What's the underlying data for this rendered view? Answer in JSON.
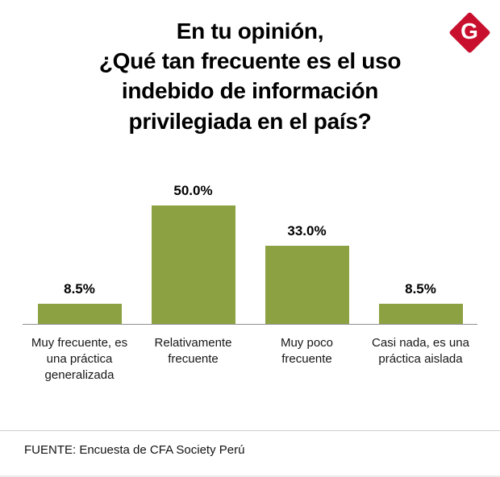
{
  "header": {
    "title_lines": [
      "En tu opinión,",
      "¿Qué tan frecuente es el uso",
      "indebido de información",
      "privilegiada en el país?"
    ],
    "logo_letter": "G",
    "logo_color": "#C8102E"
  },
  "chart_data": {
    "type": "bar",
    "title": "En tu opinión, ¿Qué tan frecuente es el uso indebido de información privilegiada en el país?",
    "categories": [
      "Muy frecuente, es una práctica generalizada",
      "Relativamente frecuente",
      "Muy poco frecuente",
      "Casi nada, es una práctica aislada"
    ],
    "values": [
      8.5,
      50.0,
      33.0,
      8.5
    ],
    "value_labels": [
      "8.5%",
      "50.0%",
      "33.0%",
      "8.5%"
    ],
    "bar_color": "#8CA141",
    "xlabel": "",
    "ylabel": "",
    "ylim": [
      0,
      55
    ],
    "grid": false,
    "legend": "none"
  },
  "footer": {
    "source": "FUENTE: Encuesta de CFA Society Perú"
  }
}
